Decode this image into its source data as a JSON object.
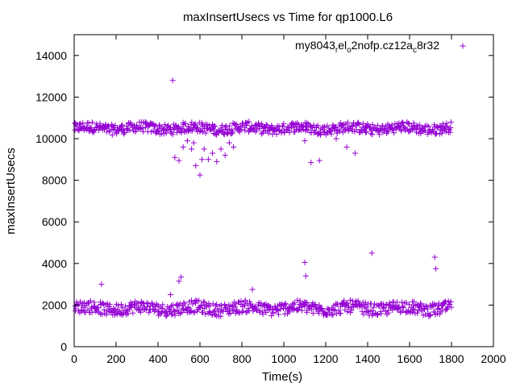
{
  "chart_data": {
    "type": "scatter",
    "title": "maxInsertUsecs vs Time for qp1000.L6",
    "xlabel": "Time(s)",
    "ylabel": "maxInsertUsecs",
    "xlim": [
      0,
      2000
    ],
    "ylim": [
      0,
      15000
    ],
    "x_ticks": [
      0,
      200,
      400,
      600,
      800,
      1000,
      1200,
      1400,
      1600,
      1800,
      2000
    ],
    "y_ticks": [
      0,
      2000,
      4000,
      6000,
      8000,
      10000,
      12000,
      14000
    ],
    "legend": {
      "position": "top-right",
      "label_parts": [
        "my8043",
        "r",
        "el",
        "o",
        "2nofp.cz12a",
        "c",
        "8r32"
      ],
      "marker": "+"
    },
    "series": [
      {
        "name": "my8043_rel_o2nofp.cz12a_c8r32",
        "color": "#9400d3",
        "marker": "+",
        "bands": [
          {
            "x_range": [
              0,
              1800
            ],
            "y_center": 10500,
            "y_spread": 250
          },
          {
            "x_range": [
              0,
              1800
            ],
            "y_center": 1850,
            "y_spread": 300
          }
        ],
        "points": [
          [
            470,
            12800
          ],
          [
            130,
            3000
          ],
          [
            500,
            3150
          ],
          [
            510,
            3350
          ],
          [
            460,
            2500
          ],
          [
            850,
            2750
          ],
          [
            1100,
            4050
          ],
          [
            1105,
            3400
          ],
          [
            1420,
            4500
          ],
          [
            1720,
            4300
          ],
          [
            1725,
            3750
          ],
          [
            480,
            9100
          ],
          [
            500,
            8950
          ],
          [
            520,
            9600
          ],
          [
            540,
            9900
          ],
          [
            560,
            9500
          ],
          [
            570,
            9800
          ],
          [
            580,
            8700
          ],
          [
            600,
            8250
          ],
          [
            610,
            9000
          ],
          [
            620,
            9500
          ],
          [
            640,
            9000
          ],
          [
            660,
            9300
          ],
          [
            680,
            8900
          ],
          [
            700,
            9500
          ],
          [
            720,
            9200
          ],
          [
            740,
            9800
          ],
          [
            760,
            9600
          ],
          [
            1100,
            9900
          ],
          [
            1130,
            8850
          ],
          [
            1170,
            8950
          ],
          [
            1250,
            10000
          ],
          [
            1300,
            9600
          ],
          [
            1340,
            9300
          ],
          [
            1360,
            10300
          ],
          [
            1390,
            10300
          ],
          [
            1240,
            10550
          ]
        ]
      }
    ]
  }
}
